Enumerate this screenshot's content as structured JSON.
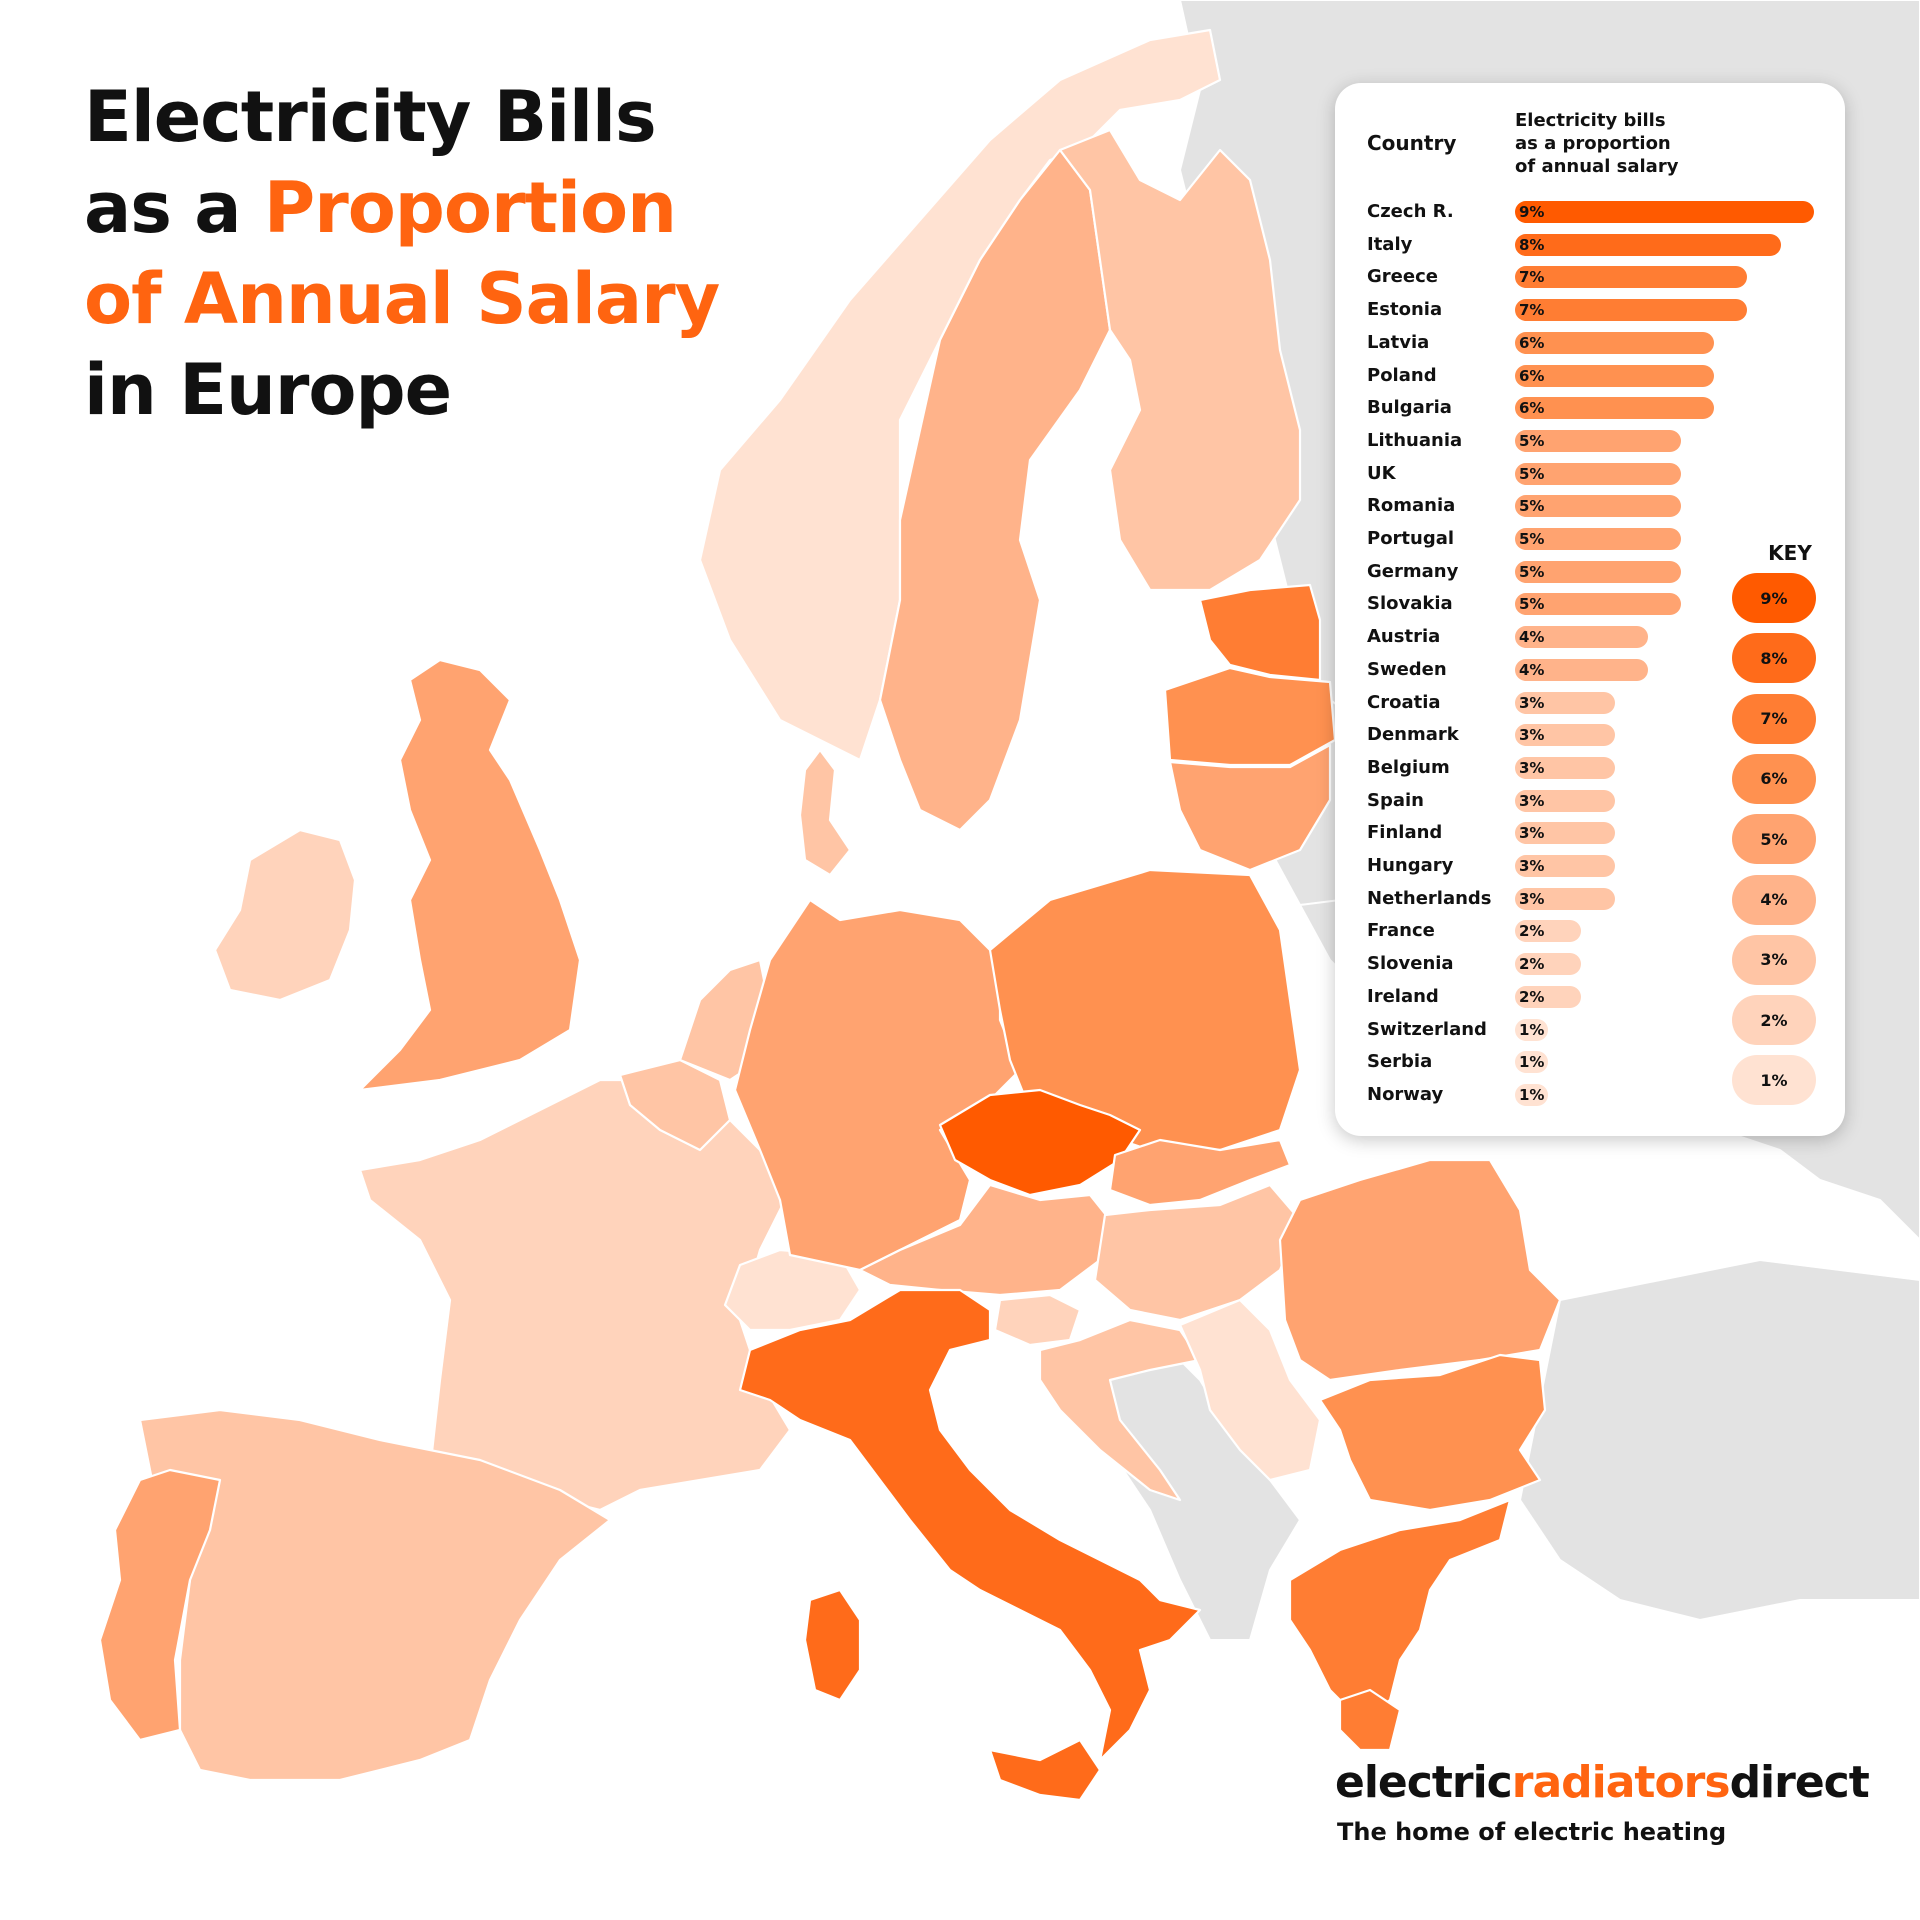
{
  "title": {
    "line1": "Electricity Bills",
    "line2_prefix": "as a ",
    "line2_accent": "Proportion",
    "line3_accent": "of Annual Salary",
    "line4": "in Europe"
  },
  "table": {
    "header_country": "Country",
    "header_metric": [
      "Electricity bills",
      "as a proportion",
      "of annual salary"
    ],
    "rows": [
      {
        "country": "Czech R.",
        "value": 9,
        "label": "9%"
      },
      {
        "country": "Italy",
        "value": 8,
        "label": "8%"
      },
      {
        "country": "Greece",
        "value": 7,
        "label": "7%"
      },
      {
        "country": "Estonia",
        "value": 7,
        "label": "7%"
      },
      {
        "country": "Latvia",
        "value": 6,
        "label": "6%"
      },
      {
        "country": "Poland",
        "value": 6,
        "label": "6%"
      },
      {
        "country": "Bulgaria",
        "value": 6,
        "label": "6%"
      },
      {
        "country": "Lithuania",
        "value": 5,
        "label": "5%"
      },
      {
        "country": "UK",
        "value": 5,
        "label": "5%"
      },
      {
        "country": "Romania",
        "value": 5,
        "label": "5%"
      },
      {
        "country": "Portugal",
        "value": 5,
        "label": "5%"
      },
      {
        "country": "Germany",
        "value": 5,
        "label": "5%"
      },
      {
        "country": "Slovakia",
        "value": 5,
        "label": "5%"
      },
      {
        "country": "Austria",
        "value": 4,
        "label": "4%"
      },
      {
        "country": "Sweden",
        "value": 4,
        "label": "4%"
      },
      {
        "country": "Croatia",
        "value": 3,
        "label": "3%"
      },
      {
        "country": "Denmark",
        "value": 3,
        "label": "3%"
      },
      {
        "country": "Belgium",
        "value": 3,
        "label": "3%"
      },
      {
        "country": "Spain",
        "value": 3,
        "label": "3%"
      },
      {
        "country": "Finland",
        "value": 3,
        "label": "3%"
      },
      {
        "country": "Hungary",
        "value": 3,
        "label": "3%"
      },
      {
        "country": "Netherlands",
        "value": 3,
        "label": "3%"
      },
      {
        "country": "France",
        "value": 2,
        "label": "2%"
      },
      {
        "country": "Slovenia",
        "value": 2,
        "label": "2%"
      },
      {
        "country": "Ireland",
        "value": 2,
        "label": "2%"
      },
      {
        "country": "Switzerland",
        "value": 1,
        "label": "1%"
      },
      {
        "country": "Serbia",
        "value": 1,
        "label": "1%"
      },
      {
        "country": "Norway",
        "value": 1,
        "label": "1%"
      }
    ]
  },
  "key": {
    "title": "KEY",
    "items": [
      {
        "label": "9%",
        "value": 9
      },
      {
        "label": "8%",
        "value": 8
      },
      {
        "label": "7%",
        "value": 7
      },
      {
        "label": "6%",
        "value": 6
      },
      {
        "label": "5%",
        "value": 5
      },
      {
        "label": "4%",
        "value": 4
      },
      {
        "label": "3%",
        "value": 3
      },
      {
        "label": "2%",
        "value": 2
      },
      {
        "label": "1%",
        "value": 1
      }
    ]
  },
  "colors": {
    "9": "#ff5a00",
    "8": "#ff6b1a",
    "7": "#ff7d33",
    "6": "#ff9150",
    "5": "#ffa370",
    "4": "#ffb38a",
    "3": "#ffc5a5",
    "2": "#ffd3bb",
    "1": "#ffe2d2",
    "no_data": "#e3e3e3",
    "accent": "#ff6410"
  },
  "brand": {
    "part1": "electric",
    "part2": "radiators",
    "part3": "direct",
    "tagline": "The home of electric heating"
  }
}
